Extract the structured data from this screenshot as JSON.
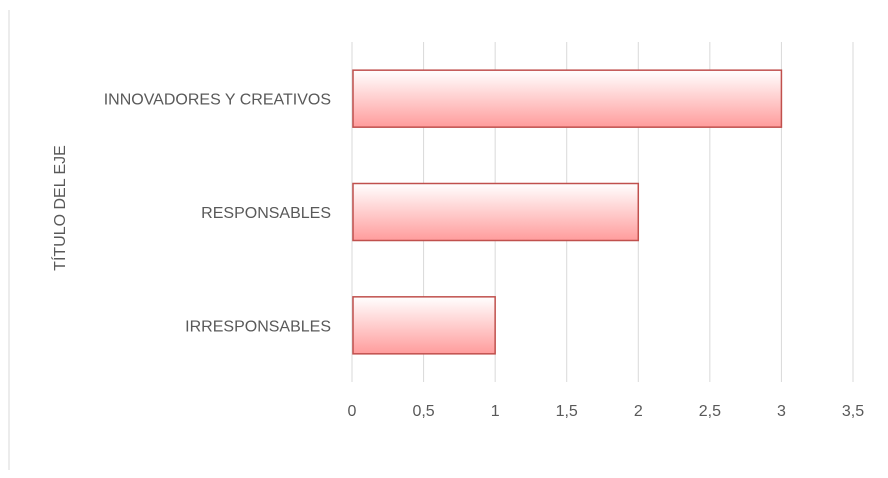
{
  "chart_data": {
    "type": "bar",
    "orientation": "horizontal",
    "categories": [
      "INNOVADORES Y CREATIVOS",
      "RESPONSABLES",
      "IRRESPONSABLES"
    ],
    "values": [
      3,
      2,
      1
    ],
    "xlabel": "",
    "ylabel": "TÍTULO DEL EJE",
    "xlim": [
      0,
      3.5
    ],
    "x_ticks": [
      "0",
      "0,5",
      "1",
      "1,5",
      "2",
      "2,5",
      "3",
      "3,5"
    ],
    "grid": true,
    "legend": "none",
    "colors": {
      "bar_fill_top": "#ffffff",
      "bar_fill_bottom": "#ff9c9c",
      "bar_border": "#c0504d",
      "grid": "#d9d9d9",
      "text": "#595959"
    }
  }
}
